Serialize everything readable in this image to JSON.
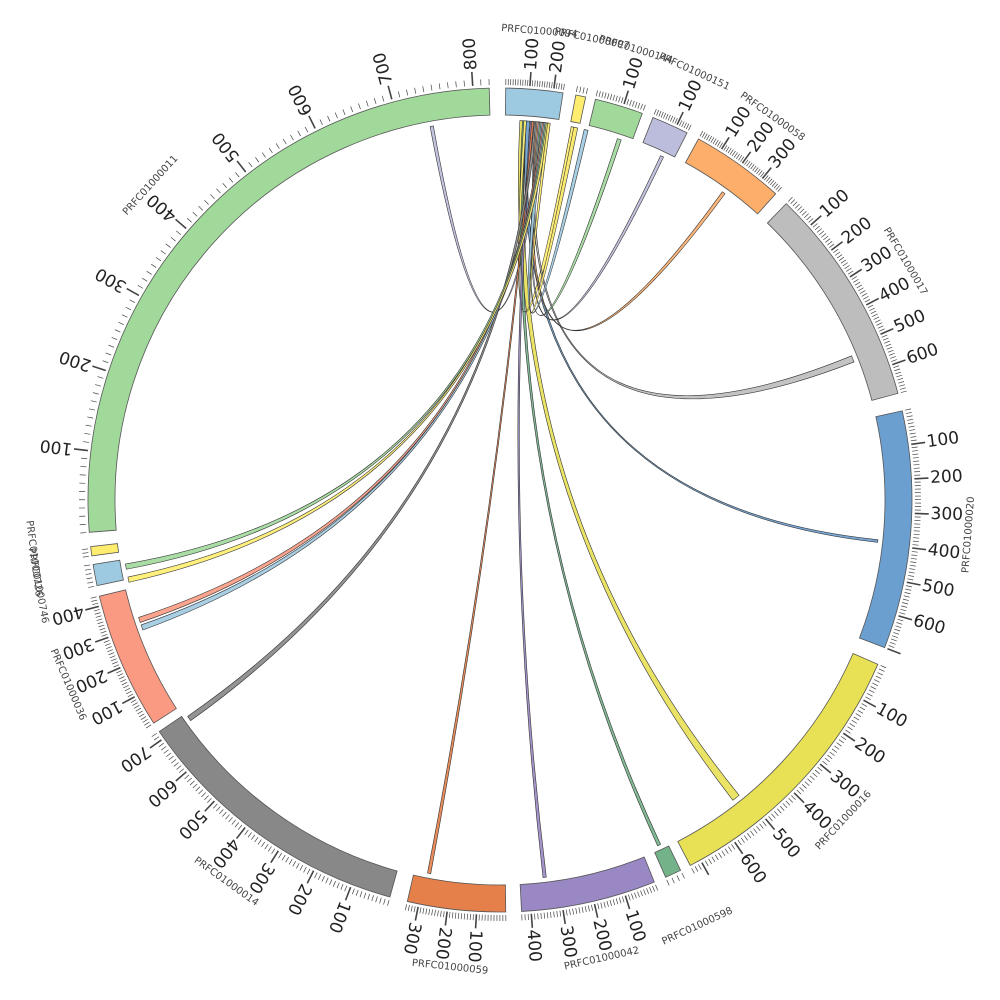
{
  "chart_data": {
    "type": "chord",
    "title": "",
    "segments": [
      {
        "name": "PRFC01000094",
        "length": 240,
        "start_deg": 0.8,
        "end_deg": 8.8,
        "color": "#9ecae1",
        "ticks": [
          100,
          200
        ]
      },
      {
        "name": "PRFC01000097",
        "length": 30,
        "start_deg": 10.6,
        "end_deg": 12.0,
        "color": "#ffed6f",
        "ticks": []
      },
      {
        "name": "PRFC01000144",
        "length": 170,
        "start_deg": 13.4,
        "end_deg": 20.2,
        "color": "#a1d99b",
        "ticks": [
          100
        ]
      },
      {
        "name": "PRFC01000151",
        "length": 150,
        "start_deg": 21.8,
        "end_deg": 27.0,
        "color": "#bcbddc",
        "ticks": [
          100
        ]
      },
      {
        "name": "PRFC01000058",
        "length": 380,
        "start_deg": 28.8,
        "end_deg": 42.0,
        "color": "#fdae6b",
        "ticks": [
          100,
          200,
          300
        ]
      },
      {
        "name": "PRFC01000017",
        "length": 690,
        "start_deg": 44.0,
        "end_deg": 75.0,
        "color": "#bdbdbd",
        "ticks": [
          100,
          200,
          300,
          400,
          500,
          600
        ]
      },
      {
        "name": "PRFC01000020",
        "length": 700,
        "start_deg": 77.5,
        "end_deg": 111.0,
        "color": "#6a9fd0",
        "ticks": [
          100,
          200,
          300,
          400,
          500,
          600
        ]
      },
      {
        "name": "PRFC01000016",
        "length": 730,
        "start_deg": 113.5,
        "end_deg": 152.5,
        "color": "#e8e055",
        "ticks": [
          100,
          200,
          300,
          400,
          500,
          600
        ]
      },
      {
        "name": "PRFC01000598",
        "length": 30,
        "start_deg": 154.0,
        "end_deg": 156.3,
        "color": "#74b38a",
        "ticks": []
      },
      {
        "name": "PRFC01000042",
        "length": 430,
        "start_deg": 158.0,
        "end_deg": 177.0,
        "color": "#9a88c4",
        "ticks": [
          100,
          200,
          300,
          400
        ]
      },
      {
        "name": "PRFC01000059",
        "length": 340,
        "start_deg": 179.2,
        "end_deg": 193.0,
        "color": "#e6804a",
        "ticks": [
          100,
          200,
          300
        ]
      },
      {
        "name": "PRFC01000014",
        "length": 720,
        "start_deg": 195.5,
        "end_deg": 235.8,
        "color": "#888888",
        "ticks": [
          100,
          200,
          300,
          400,
          500,
          600,
          700
        ]
      },
      {
        "name": "PRFC01000036",
        "length": 430,
        "start_deg": 237.2,
        "end_deg": 256.5,
        "color": "#fb9a82",
        "ticks": [
          100,
          200,
          300,
          400
        ]
      },
      {
        "name": "PRFC01000746",
        "length": 50,
        "start_deg": 258.0,
        "end_deg": 261.0,
        "color": "#9ecae1",
        "ticks": []
      },
      {
        "name": "PRFC01000726",
        "length": 25,
        "start_deg": 262.2,
        "end_deg": 263.5,
        "color": "#ffed6f",
        "ticks": []
      },
      {
        "name": "PRFC01000011",
        "length": 820,
        "start_deg": 265.5,
        "end_deg": 358.5,
        "color": "#a1d99b",
        "ticks": [
          100,
          200,
          300,
          400,
          500,
          600,
          700,
          800
        ]
      }
    ],
    "links": [
      {
        "a": [
          6.2,
          6.6
        ],
        "b": [
          349.4,
          349.9
        ],
        "color": "#bcbddc"
      },
      {
        "a": [
          3.0,
          4.0
        ],
        "b": [
          141.0,
          142.2
        ],
        "color": "#e8e055"
      },
      {
        "a": [
          3.4,
          4.0
        ],
        "b": [
          155.0,
          155.5
        ],
        "color": "#74b38a"
      },
      {
        "a": [
          3.6,
          4.0
        ],
        "b": [
          10.8,
          11.6
        ],
        "color": "#ffed6f"
      },
      {
        "a": [
          4.0,
          4.5
        ],
        "b": [
          96.0,
          96.4
        ],
        "color": "#6a9fd0"
      },
      {
        "a": [
          4.6,
          5.0
        ],
        "b": [
          173.0,
          173.5
        ],
        "color": "#9a88c4"
      },
      {
        "a": [
          4.8,
          5.1
        ],
        "b": [
          190.5,
          191.0
        ],
        "color": "#e6804a"
      },
      {
        "a": [
          5.2,
          5.6
        ],
        "b": [
          234.5,
          235.3
        ],
        "color": "#888888"
      },
      {
        "a": [
          5.4,
          5.8
        ],
        "b": [
          67.7,
          68.7
        ],
        "color": "#bdbdbd"
      },
      {
        "a": [
          5.6,
          6.0
        ],
        "b": [
          35.8,
          36.3
        ],
        "color": "#fdae6b"
      },
      {
        "a": [
          5.8,
          6.2
        ],
        "b": [
          25.0,
          25.5
        ],
        "color": "#bcbddc"
      },
      {
        "a": [
          6.0,
          6.4
        ],
        "b": [
          18.0,
          18.6
        ],
        "color": "#a1d99b"
      },
      {
        "a": [
          6.2,
          6.8
        ],
        "b": [
          12.8,
          13.4
        ],
        "color": "#9ecae1"
      },
      {
        "a": [
          6.4,
          6.8
        ],
        "b": [
          251.2,
          252.0
        ],
        "color": "#fb9a82"
      },
      {
        "a": [
          6.6,
          7.0
        ],
        "b": [
          250.0,
          250.8
        ],
        "color": "#9ecae1"
      },
      {
        "a": [
          6.8,
          7.2
        ],
        "b": [
          259.5,
          260.3
        ],
        "color": "#a1d99b"
      },
      {
        "a": [
          7.0,
          7.4
        ],
        "b": [
          257.5,
          258.3
        ],
        "color": "#ffed6f"
      },
      {
        "a": [
          7.2,
          7.6
        ],
        "b": [
          11.2,
          11.8
        ],
        "color": "#ffed6f"
      }
    ]
  }
}
